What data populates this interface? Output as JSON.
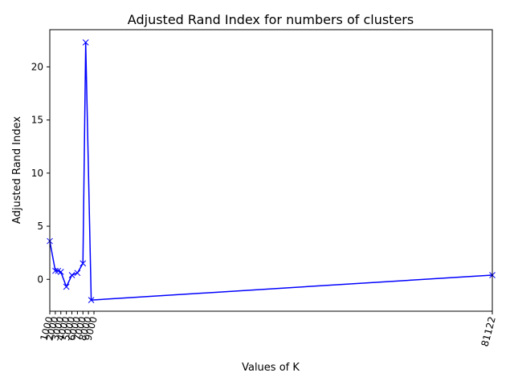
{
  "chart_data": {
    "type": "line",
    "title": "Adjusted Rand Index for numbers of clusters",
    "xlabel": "Values of K",
    "ylabel": "Adjusted Rand Index",
    "xlim": [
      1000,
      81122
    ],
    "ylim": [
      -3.0,
      23.5
    ],
    "grid": false,
    "x_ticks": [
      1000,
      2000,
      3000,
      4000,
      5000,
      6000,
      7000,
      8000,
      9000,
      81122
    ],
    "y_ticks": [
      0,
      5,
      10,
      15,
      20
    ],
    "x_tick_labels": [
      "1000",
      "2000",
      "3000",
      "4000",
      "5000",
      "6000",
      "7000",
      "8000",
      "9000",
      "81122"
    ],
    "y_tick_labels": [
      "0",
      "5",
      "10",
      "15",
      "20"
    ],
    "series": [
      {
        "color": "#0000ff",
        "marker": "x",
        "x": [
          1000,
          2000,
          2500,
          3000,
          4000,
          5000,
          6000,
          7000,
          7500,
          8500,
          81122
        ],
        "y": [
          3.6,
          0.8,
          0.8,
          0.7,
          -0.7,
          0.4,
          0.6,
          1.5,
          22.3,
          -1.95,
          0.4
        ]
      }
    ]
  }
}
